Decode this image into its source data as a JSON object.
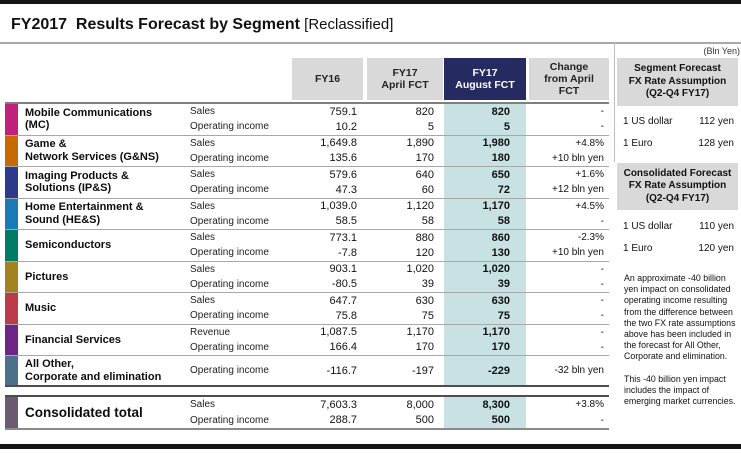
{
  "title": {
    "main": "FY2017  Results Forecast by Segment",
    "suffix": " [Reclassified]"
  },
  "unit_note": "(Bln Yen)",
  "colors": {
    "header_bg": "#d9d9d9",
    "august_header_bg": "#252b60",
    "august_column_bg": "#c8e2e4"
  },
  "table": {
    "columns": [
      {
        "id": "fy16",
        "label": "FY16"
      },
      {
        "id": "april",
        "label": "FY17\nApril FCT"
      },
      {
        "id": "august",
        "label": "FY17\nAugust FCT"
      },
      {
        "id": "change",
        "label": "Change\nfrom April\nFCT"
      }
    ],
    "segments": [
      {
        "name": "Mobile Communications\n(MC)",
        "color": "#c0227b",
        "metrics": [
          {
            "label": "Sales",
            "values": [
              "759.1",
              "820",
              "820",
              "-"
            ]
          },
          {
            "label": "Operating income",
            "values": [
              "10.2",
              "5",
              "5",
              "-"
            ]
          }
        ]
      },
      {
        "name": "Game &\nNetwork Services (G&NS)",
        "color": "#c66a00",
        "metrics": [
          {
            "label": "Sales",
            "values": [
              "1,649.8",
              "1,890",
              "1,980",
              "+4.8%"
            ]
          },
          {
            "label": "Operating income",
            "values": [
              "135.6",
              "170",
              "180",
              "+10 bln yen"
            ]
          }
        ]
      },
      {
        "name": "Imaging Products &\nSolutions (IP&S)",
        "color": "#2c3a8c",
        "metrics": [
          {
            "label": "Sales",
            "values": [
              "579.6",
              "640",
              "650",
              "+1.6%"
            ]
          },
          {
            "label": "Operating income",
            "values": [
              "47.3",
              "60",
              "72",
              "+12 bln yen"
            ]
          }
        ]
      },
      {
        "name": "Home Entertainment &\nSound (HE&S)",
        "color": "#1a7ab5",
        "metrics": [
          {
            "label": "Sales",
            "values": [
              "1,039.0",
              "1,120",
              "1,170",
              "+4.5%"
            ]
          },
          {
            "label": "Operating income",
            "values": [
              "58.5",
              "58",
              "58",
              "-"
            ]
          }
        ]
      },
      {
        "name": "Semiconductors",
        "color": "#007c66",
        "metrics": [
          {
            "label": "Sales",
            "values": [
              "773.1",
              "880",
              "860",
              "-2.3%"
            ]
          },
          {
            "label": "Operating income",
            "values": [
              "-7.8",
              "120",
              "130",
              "+10 bln yen"
            ]
          }
        ]
      },
      {
        "name": "Pictures",
        "color": "#a3831f",
        "metrics": [
          {
            "label": "Sales",
            "values": [
              "903.1",
              "1,020",
              "1,020",
              "-"
            ]
          },
          {
            "label": "Operating income",
            "values": [
              "-80.5",
              "39",
              "39",
              "-"
            ]
          }
        ]
      },
      {
        "name": "Music",
        "color": "#bc3a4a",
        "metrics": [
          {
            "label": "Sales",
            "values": [
              "647.7",
              "630",
              "630",
              "-"
            ]
          },
          {
            "label": "Operating income",
            "values": [
              "75.8",
              "75",
              "75",
              "-"
            ]
          }
        ]
      },
      {
        "name": "Financial Services",
        "color": "#6f2585",
        "metrics": [
          {
            "label": "Revenue",
            "values": [
              "1,087.5",
              "1,170",
              "1,170",
              "-"
            ]
          },
          {
            "label": "Operating income",
            "values": [
              "166.4",
              "170",
              "170",
              "-"
            ]
          }
        ]
      },
      {
        "name": "All Other,\nCorporate and elimination",
        "color": "#4d7089",
        "metrics": [
          {
            "label": "Operating income",
            "values": [
              "-116.7",
              "-197",
              "-229",
              "-32 bln yen"
            ]
          }
        ]
      }
    ],
    "total": {
      "name": "Consolidated total",
      "color": "#6b5b70",
      "metrics": [
        {
          "label": "Sales",
          "values": [
            "7,603.3",
            "8,000",
            "8,300",
            "+3.8%"
          ]
        },
        {
          "label": "Operating income",
          "values": [
            "288.7",
            "500",
            "500",
            "-"
          ]
        }
      ]
    }
  },
  "sidebar": {
    "segment_fx": {
      "title": "Segment Forecast\nFX Rate Assumption\n(Q2-Q4 FY17)",
      "rates": [
        {
          "label": "1 US dollar",
          "value": "112 yen"
        },
        {
          "label": "1 Euro",
          "value": "128 yen"
        }
      ]
    },
    "consolidated_fx": {
      "title": "Consolidated Forecast\nFX Rate Assumption\n(Q2-Q4 FY17)",
      "rates": [
        {
          "label": "1 US dollar",
          "value": "110 yen"
        },
        {
          "label": "1 Euro",
          "value": "120 yen"
        }
      ]
    },
    "notes": [
      "An approximate -40 billion yen impact on consolidated operating income resulting from the difference between the two FX rate assumptions above has been included in the forecast for All Other, Corporate and elimination.",
      "This -40 billion yen impact includes the impact of emerging market currencies."
    ]
  }
}
